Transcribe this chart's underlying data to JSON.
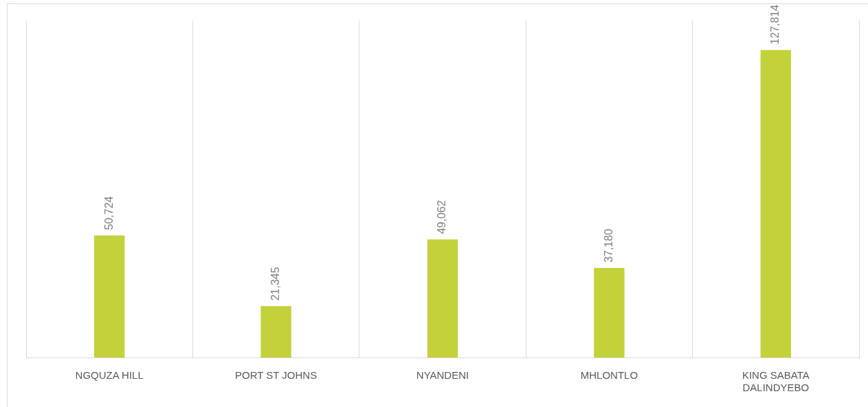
{
  "chart_data": {
    "type": "bar",
    "categories": [
      "NGQUZA HILL",
      "PORT ST JOHNS",
      "NYANDENI",
      "MHLONTLO",
      "KING SABATA DALINDYEBO"
    ],
    "values": [
      50724,
      21345,
      49062,
      37180,
      127814
    ],
    "value_labels": [
      "50,724",
      "21,345",
      "49,062",
      "37,180",
      "127,814"
    ],
    "color": "#c3d13a",
    "ylim": [
      0,
      140000
    ],
    "grid": "x",
    "legend": false
  }
}
